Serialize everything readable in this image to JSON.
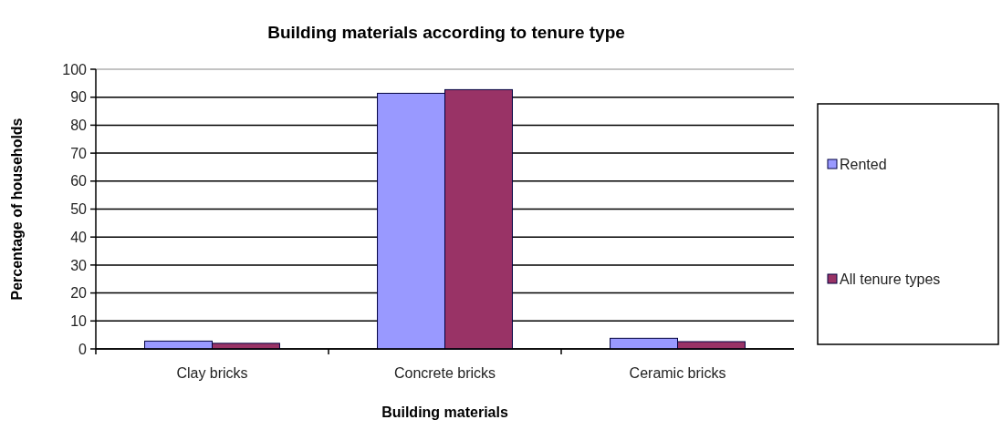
{
  "chart_data": {
    "type": "bar",
    "title": "Building materials according to tenure type",
    "xlabel": "Building materials",
    "ylabel": "Percentage of households",
    "categories": [
      "Clay bricks",
      "Concrete bricks",
      "Ceramic bricks"
    ],
    "series": [
      {
        "name": "Rented",
        "color": "#9999ff",
        "values": [
          2.8,
          91.4,
          3.8
        ]
      },
      {
        "name": "All tenure types",
        "color": "#993366",
        "values": [
          2,
          92.7,
          2.6
        ]
      }
    ],
    "ylim": [
      0,
      100
    ],
    "yticks": [
      0,
      10,
      20,
      30,
      40,
      50,
      60,
      70,
      80,
      90,
      100
    ],
    "grid": "y",
    "legend": "right"
  }
}
